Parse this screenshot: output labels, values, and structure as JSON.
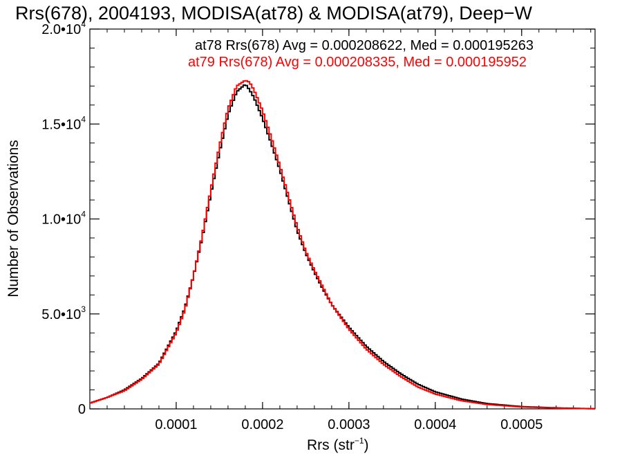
{
  "chart_data": {
    "type": "line",
    "title": "Rrs(678), 2004193, MODISA(at78) & MODISA(at79), Deep−W",
    "xlabel": {
      "main": "Rrs (str",
      "sup": "−1",
      "close": ")"
    },
    "ylabel": "Number of Observations",
    "xlim": [
      0.0,
      0.000585
    ],
    "ylim": [
      0,
      20000
    ],
    "x_ticks": [
      {
        "value": 0.0001,
        "label": "0.0001"
      },
      {
        "value": 0.0002,
        "label": "0.0002"
      },
      {
        "value": 0.0003,
        "label": "0.0003"
      },
      {
        "value": 0.0004,
        "label": "0.0004"
      },
      {
        "value": 0.0005,
        "label": "0.0005"
      }
    ],
    "y_ticks": [
      {
        "value": 0,
        "base": "0",
        "exp": ""
      },
      {
        "value": 5000,
        "base": "5.0•10",
        "exp": "3"
      },
      {
        "value": 10000,
        "base": "1.0•10",
        "exp": "4"
      },
      {
        "value": 15000,
        "base": "1.5•10",
        "exp": "4"
      },
      {
        "value": 20000,
        "base": "2.0•10",
        "exp": "4"
      }
    ],
    "legend": [
      {
        "label": "at78 Rrs(678) Avg = 0.000208622, Med = 0.000195263",
        "color": "#000000"
      },
      {
        "label": "at79 Rrs(678) Avg = 0.000208335, Med = 0.000195952",
        "color": "#ff0000"
      }
    ],
    "legend_position": "top-right",
    "series": [
      {
        "name": "at78",
        "color": "#000000",
        "style": "step",
        "x": [
          0.0,
          2e-05,
          4e-05,
          6e-05,
          8e-05,
          0.0001,
          0.00011,
          0.00012,
          0.00013,
          0.00014,
          0.00015,
          0.00016,
          0.00017,
          0.00018,
          0.000185,
          0.00019,
          0.0002,
          0.00021,
          0.00022,
          0.00023,
          0.00024,
          0.00025,
          0.00026,
          0.00027,
          0.00028,
          0.0003,
          0.00032,
          0.00034,
          0.00036,
          0.00038,
          0.0004,
          0.00043,
          0.00046,
          0.0005,
          0.00055,
          0.000585
        ],
        "y": [
          300,
          600,
          1000,
          1600,
          2400,
          4100,
          5300,
          7000,
          9000,
          11300,
          13500,
          15500,
          16700,
          17100,
          16800,
          16400,
          15300,
          14000,
          12600,
          11000,
          9400,
          8200,
          7200,
          6300,
          5500,
          4300,
          3300,
          2500,
          1850,
          1300,
          900,
          520,
          280,
          120,
          40,
          10
        ]
      },
      {
        "name": "at79",
        "color": "#ff0000",
        "style": "step",
        "x": [
          0.0,
          2e-05,
          4e-05,
          6e-05,
          8e-05,
          0.0001,
          0.00011,
          0.00012,
          0.00013,
          0.00014,
          0.00015,
          0.00016,
          0.00017,
          0.00018,
          0.000185,
          0.00019,
          0.0002,
          0.00021,
          0.00022,
          0.00023,
          0.00024,
          0.00025,
          0.00026,
          0.00027,
          0.00028,
          0.0003,
          0.00032,
          0.00034,
          0.00036,
          0.00038,
          0.0004,
          0.00043,
          0.00046,
          0.0005,
          0.00055,
          0.000585
        ],
        "y": [
          300,
          600,
          950,
          1550,
          2350,
          4000,
          5200,
          7000,
          9100,
          11500,
          13800,
          15800,
          17000,
          17300,
          17200,
          16800,
          15700,
          14300,
          12800,
          11200,
          9600,
          8300,
          7300,
          6400,
          5500,
          4200,
          3150,
          2350,
          1700,
          1150,
          780,
          430,
          230,
          100,
          30,
          10
        ]
      }
    ]
  }
}
